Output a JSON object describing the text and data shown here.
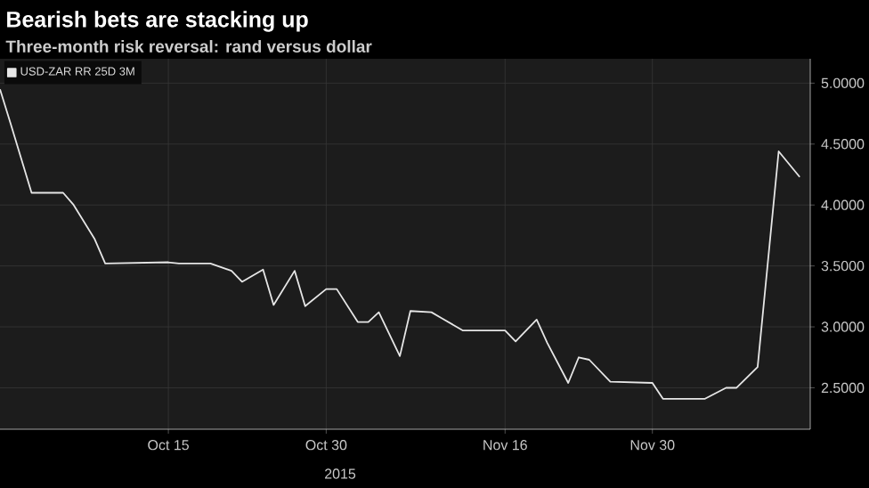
{
  "chart_data": {
    "type": "line",
    "title": "Bearish bets are stacking up",
    "subtitle": "Three-month risk reversal: rand versus dollar",
    "x": [
      "2015-09-29",
      "2015-09-30",
      "2015-10-02",
      "2015-10-05",
      "2015-10-06",
      "2015-10-08",
      "2015-10-09",
      "2015-10-15",
      "2015-10-16",
      "2015-10-19",
      "2015-10-21",
      "2015-10-22",
      "2015-10-24",
      "2015-10-25",
      "2015-10-27",
      "2015-10-28",
      "2015-10-30",
      "2015-10-31",
      "2015-11-02",
      "2015-11-03",
      "2015-11-04",
      "2015-11-06",
      "2015-11-07",
      "2015-11-09",
      "2015-11-10",
      "2015-11-12",
      "2015-11-16",
      "2015-11-17",
      "2015-11-19",
      "2015-11-20",
      "2015-11-22",
      "2015-11-23",
      "2015-11-24",
      "2015-11-26",
      "2015-11-30",
      "2015-12-01",
      "2015-12-05",
      "2015-12-07",
      "2015-12-08",
      "2015-12-10",
      "2015-12-12",
      "2015-12-14"
    ],
    "series": [
      {
        "name": "USD-ZAR RR 25D 3M",
        "color": "#e6e6e6",
        "values": [
          4.95,
          4.67,
          4.1,
          4.1,
          4.0,
          3.72,
          3.52,
          3.53,
          3.52,
          3.52,
          3.46,
          3.37,
          3.47,
          3.18,
          3.46,
          3.17,
          3.31,
          3.31,
          3.04,
          3.04,
          3.12,
          2.76,
          3.13,
          3.12,
          3.07,
          2.97,
          2.97,
          2.88,
          3.06,
          2.87,
          2.54,
          2.75,
          2.73,
          2.55,
          2.54,
          2.41,
          2.41,
          2.5,
          2.5,
          2.67,
          4.44,
          4.23
        ]
      }
    ],
    "xlim": [
      "2015-09-29",
      "2015-12-15"
    ],
    "ylim": [
      2.16,
      5.2
    ],
    "xticks": [
      {
        "value": "2015-10-15",
        "label": "Oct 15"
      },
      {
        "value": "2015-10-30",
        "label": "Oct 30"
      },
      {
        "value": "2015-11-16",
        "label": "Nov 16"
      },
      {
        "value": "2015-11-30",
        "label": "Nov 30"
      }
    ],
    "yticks": [
      {
        "value": 2.5,
        "label": "2.5000"
      },
      {
        "value": 3,
        "label": "3.0000"
      },
      {
        "value": 3.5,
        "label": "3.5000"
      },
      {
        "value": 4,
        "label": "4.0000"
      },
      {
        "value": 4.5,
        "label": "4.5000"
      },
      {
        "value": 5,
        "label": "5.0000"
      }
    ],
    "grid": true,
    "legend": "top left",
    "annotations": [
      "2015"
    ]
  }
}
